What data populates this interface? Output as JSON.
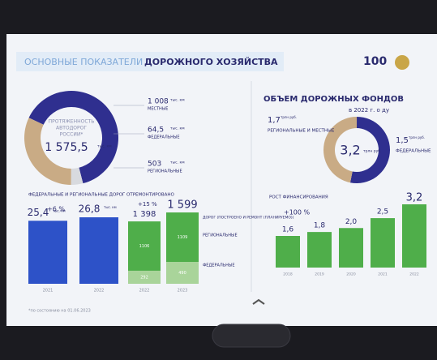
{
  "header": {
    "title_light": "ОСНОВНЫЕ ПОКАЗАТЕЛИ",
    "title_bold": "ДОРОЖНОГО ХОЗЯЙСТВА",
    "logo": "100"
  },
  "footnote": "*по состоянию на 01.06.2023",
  "chart_data": [
    {
      "type": "pie",
      "title": [
        "ПРОТЯЖЕННОСТЬ",
        "АВТОДОРОГ",
        "РОССИИ*"
      ],
      "center_label": "1 575,5",
      "unit": "тыс. км",
      "categories": [
        "МЕСТНЫЕ",
        "ФЕДЕРАЛЬНЫЕ",
        "РЕГИОНАЛЬНЫЕ"
      ],
      "values": [
        1008,
        64.5,
        503
      ],
      "value_labels": [
        "1 008",
        "64,5",
        "503"
      ],
      "colors": [
        "#2f2f8f",
        "#d8dadf",
        "#c9ab85"
      ]
    },
    {
      "type": "bar",
      "title": "ФЕДЕРАЛЬНЫЕ И РЕГИОНАЛЬНЫЕ ДОРОГ ОТРЕМОНТИРОВАНО",
      "annotation": "+6 %",
      "unit": "тыс. км",
      "categories": [
        "2021",
        "2022"
      ],
      "values": [
        25.4,
        26.8
      ],
      "value_labels": [
        "25,4",
        "26,8"
      ],
      "color": "#2d52c8"
    },
    {
      "type": "stacked_bar",
      "annotation": "+15 %",
      "legend_title": "ДОРОГ (ПОСТРОЕНО И РЕМОНТ (ПЛАНИРУЕМО))",
      "categories": [
        "2022",
        "2023"
      ],
      "total_labels": [
        "1 398",
        "1 599"
      ],
      "series": [
        {
          "name": "ФЕДЕРАЛЬНЫЕ",
          "color": "#a9d49a",
          "values": [
            292,
            490
          ]
        },
        {
          "name": "РЕГИОНАЛЬНЫЕ",
          "color": "#4fae4a",
          "values": [
            1106,
            1109
          ]
        }
      ]
    },
    {
      "type": "pie",
      "title": "ОБЪЕМ ДОРОЖНЫХ ФОНДОВ",
      "subtitle": "в 2022 г. о ду",
      "center_label": "3,2",
      "unit": "трлн руб.",
      "categories": [
        "РЕГИОНАЛЬНЫЕ И МЕСТНЫЕ",
        "ФЕДЕРАЛЬНЫЕ"
      ],
      "values": [
        1.7,
        1.5
      ],
      "value_labels": [
        "1,7",
        "1,5"
      ],
      "colors": [
        "#2f2f8f",
        "#c9ab85"
      ]
    },
    {
      "type": "bar",
      "title": "РОСТ ФИНАНСИРОВАНИЯ",
      "annotation": "+100 %",
      "categories": [
        "2018",
        "2019",
        "2020",
        "2021",
        "2022"
      ],
      "values": [
        1.6,
        1.8,
        2.0,
        2.5,
        3.2
      ],
      "value_labels": [
        "1,6",
        "1,8",
        "2,0",
        "2,5",
        "3,2"
      ],
      "color": "#4fae4a"
    }
  ]
}
